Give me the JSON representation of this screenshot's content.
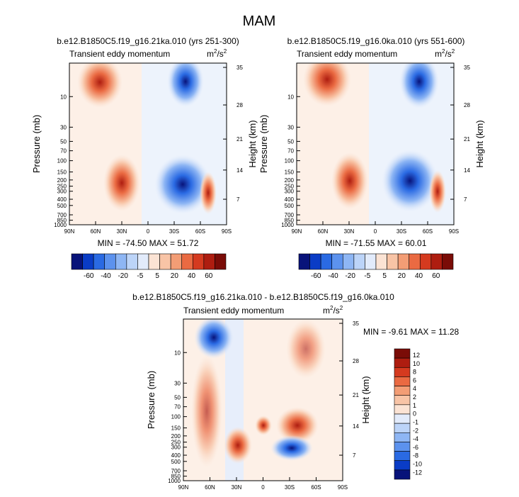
{
  "title": "MAM",
  "colors": {
    "panel_scale": [
      "#08137a",
      "#0a3cc6",
      "#2a6ae3",
      "#5c92ee",
      "#8eb6f4",
      "#bcd4f8",
      "#e2ebfb",
      "#fbe3d4",
      "#f8c4a6",
      "#f39d75",
      "#ea6a42",
      "#d53a1f",
      "#ae1d10",
      "#7a0c07"
    ],
    "diff_scale": [
      "#08137a",
      "#0a3cc6",
      "#2a6ae3",
      "#5c92ee",
      "#8eb6f4",
      "#bcd4f8",
      "#e2ebfb",
      "#fbe3d4",
      "#f8c4a6",
      "#f39d75",
      "#ea6a42",
      "#d53a1f",
      "#ae1d10",
      "#7a0c07"
    ]
  },
  "chart_data": [
    {
      "type": "heatmap",
      "title": "b.e12.B1850C5.f19_g16.21ka.010 (yrs 251-300)",
      "left_label": "Transient eddy momentum",
      "units_base": "m",
      "units_sup1": "2",
      "units_mid": "/s",
      "units_sup2": "2",
      "xlabel": "",
      "ylabel": "Pressure (mb)",
      "ylabel_right": "Height (km)",
      "x_ticks": [
        "90N",
        "60N",
        "30N",
        "0",
        "30S",
        "60S",
        "90S"
      ],
      "x_range": [
        90,
        -90
      ],
      "y_ticks": [
        "10",
        "30",
        "50",
        "70",
        "100",
        "150",
        "200",
        "250",
        "300",
        "400",
        "500",
        "700",
        "850",
        "1000"
      ],
      "y_range": [
        3,
        1000
      ],
      "height_ticks": [
        "35",
        "28",
        "21",
        "14",
        "7"
      ],
      "stats": "MIN = -74.50  MAX = 51.72",
      "levels": [
        "-60",
        "-40",
        "-20",
        "-5",
        "5",
        "20",
        "40",
        "60"
      ],
      "features": [
        {
          "lat": 60,
          "p": 7,
          "value": 45
        },
        {
          "lat": 28,
          "p": 250,
          "value": 50
        },
        {
          "lat": -40,
          "p": 260,
          "value": -74
        },
        {
          "lat": -55,
          "p": 8,
          "value": -40
        },
        {
          "lat": -68,
          "p": 320,
          "value": 30
        }
      ]
    },
    {
      "type": "heatmap",
      "title": "b.e12.B1850C5.f19_g16.0ka.010 (yrs 551-600)",
      "left_label": "Transient eddy momentum",
      "units_base": "m",
      "units_sup1": "2",
      "units_mid": "/s",
      "units_sup2": "2",
      "xlabel": "",
      "ylabel": "Pressure (mb)",
      "ylabel_right": "Height (km)",
      "x_ticks": [
        "90N",
        "60N",
        "30N",
        "0",
        "30S",
        "60S",
        "90S"
      ],
      "x_range": [
        90,
        -90
      ],
      "y_ticks": [
        "10",
        "30",
        "50",
        "70",
        "100",
        "150",
        "200",
        "250",
        "300",
        "400",
        "500",
        "700",
        "850",
        "1000"
      ],
      "y_range": [
        3,
        1000
      ],
      "height_ticks": [
        "35",
        "28",
        "21",
        "14",
        "7"
      ],
      "stats": "MIN = -71.55  MAX = 60.01",
      "levels": [
        "-60",
        "-40",
        "-20",
        "-5",
        "5",
        "20",
        "40",
        "60"
      ],
      "features": [
        {
          "lat": 60,
          "p": 6,
          "value": 60
        },
        {
          "lat": 28,
          "p": 230,
          "value": 50
        },
        {
          "lat": -40,
          "p": 230,
          "value": -71
        },
        {
          "lat": -55,
          "p": 8,
          "value": -45
        },
        {
          "lat": -66,
          "p": 320,
          "value": 30
        }
      ]
    },
    {
      "type": "heatmap",
      "title": "b.e12.B1850C5.f19_g16.21ka.010 - b.e12.B1850C5.f19_g16.0ka.010",
      "left_label": "Transient eddy momentum",
      "units_base": "m",
      "units_sup1": "2",
      "units_mid": "/s",
      "units_sup2": "2",
      "xlabel": "",
      "ylabel": "Pressure (mb)",
      "ylabel_right": "Height (km)",
      "x_ticks": [
        "90N",
        "60N",
        "30N",
        "0",
        "30S",
        "60S",
        "90S"
      ],
      "x_range": [
        90,
        -90
      ],
      "y_ticks": [
        "10",
        "30",
        "50",
        "70",
        "100",
        "150",
        "200",
        "250",
        "300",
        "400",
        "500",
        "700",
        "850",
        "1000"
      ],
      "y_range": [
        3,
        1000
      ],
      "height_ticks": [
        "35",
        "28",
        "21",
        "14",
        "7"
      ],
      "stats": "MIN =  -9.61  MAX = 11.28",
      "levels": [
        "12",
        "10",
        "8",
        "6",
        "4",
        "2",
        "1",
        "0",
        "-1",
        "-2",
        "-4",
        "-6",
        "-8",
        "-10",
        "-12"
      ],
      "features": [
        {
          "lat": 70,
          "p": 6,
          "value": -9
        },
        {
          "lat": 70,
          "p": 150,
          "value": 5
        },
        {
          "lat": 30,
          "p": 300,
          "value": 7
        },
        {
          "lat": -28,
          "p": 150,
          "value": 11
        },
        {
          "lat": -30,
          "p": 320,
          "value": -9
        },
        {
          "lat": -50,
          "p": 8,
          "value": 5
        }
      ]
    }
  ]
}
